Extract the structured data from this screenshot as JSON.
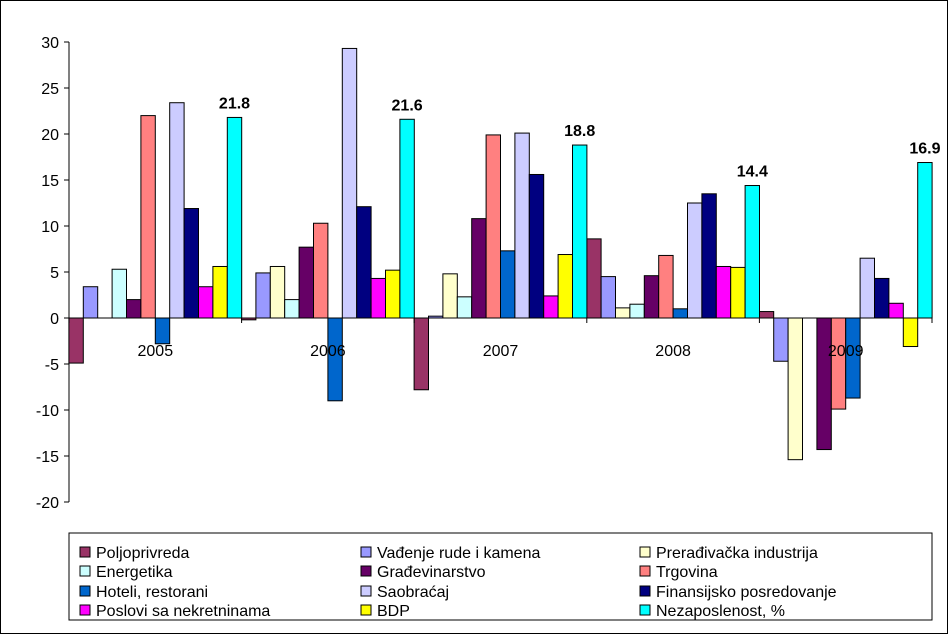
{
  "chart_data": {
    "type": "bar",
    "title": "",
    "xlabel": "",
    "ylabel": "",
    "ylim": [
      -20,
      30
    ],
    "y_ticks": [
      30,
      25,
      20,
      15,
      10,
      5,
      0,
      -5,
      -10,
      -15,
      -20
    ],
    "categories": [
      "2005",
      "2006",
      "2007",
      "2008",
      "2009"
    ],
    "grid": false,
    "legend_position": "bottom",
    "series": [
      {
        "name": "Poljoprivreda",
        "color": "#993366",
        "values": [
          -4.9,
          -0.2,
          -7.8,
          8.6,
          0.7
        ]
      },
      {
        "name": "Vađenje rude i kamena",
        "color": "#9999FF",
        "values": [
          3.4,
          4.9,
          0.2,
          4.5,
          -4.7
        ]
      },
      {
        "name": "Prerađivačka industrija",
        "color": "#FFFFCC",
        "values": [
          0.0,
          5.6,
          4.8,
          1.1,
          -15.4
        ]
      },
      {
        "name": "Energetika",
        "color": "#CCFFFF",
        "values": [
          5.3,
          2.0,
          2.3,
          1.5,
          0.0
        ]
      },
      {
        "name": "Građevinarstvo",
        "color": "#660066",
        "values": [
          2.0,
          7.7,
          10.8,
          4.6,
          -14.3
        ]
      },
      {
        "name": "Trgovina",
        "color": "#FF8080",
        "values": [
          22.0,
          10.3,
          19.9,
          6.8,
          -9.9
        ]
      },
      {
        "name": "Hoteli, restorani",
        "color": "#0066CC",
        "values": [
          -2.8,
          -9.0,
          7.3,
          1.0,
          -8.7
        ]
      },
      {
        "name": "Saobraćaj",
        "color": "#CCCCFF",
        "values": [
          23.4,
          29.3,
          20.1,
          12.5,
          6.5
        ]
      },
      {
        "name": "Finansijsko posredovanje",
        "color": "#000080",
        "values": [
          11.9,
          12.1,
          15.6,
          13.5,
          4.3
        ]
      },
      {
        "name": "Poslovi sa nekretninama",
        "color": "#FF00FF",
        "values": [
          3.4,
          4.3,
          2.4,
          5.6,
          1.6
        ]
      },
      {
        "name": "BDP",
        "color": "#FFFF00",
        "values": [
          5.6,
          5.2,
          6.9,
          5.5,
          -3.1
        ]
      },
      {
        "name": "Nezaposlenost, %",
        "color": "#00FFFF",
        "values": [
          21.8,
          21.6,
          18.8,
          14.4,
          16.9
        ]
      }
    ],
    "data_labels": [
      {
        "series": "Nezaposlenost, %",
        "category": "2005",
        "text": "21.8"
      },
      {
        "series": "Nezaposlenost, %",
        "category": "2006",
        "text": "21.6"
      },
      {
        "series": "Nezaposlenost, %",
        "category": "2007",
        "text": "18.8"
      },
      {
        "series": "Nezaposlenost, %",
        "category": "2008",
        "text": "14.4"
      },
      {
        "series": "Nezaposlenost, %",
        "category": "2009",
        "text": "16.9"
      }
    ]
  }
}
